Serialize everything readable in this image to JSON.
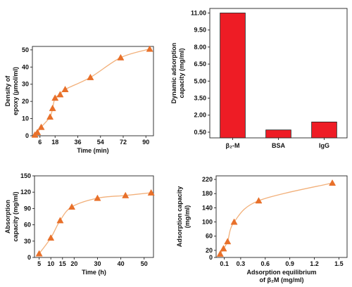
{
  "chart_data": [
    {
      "id": "epoxy",
      "type": "line",
      "xlabel": "Time (min)",
      "ylabel": [
        "Density of",
        "epoxy (µmol/ml)"
      ],
      "xlim": [
        0,
        96
      ],
      "ylim": [
        0,
        52
      ],
      "xticks": [
        6,
        18,
        36,
        54,
        72,
        90
      ],
      "yticks": [
        0,
        10,
        20,
        30,
        40,
        50
      ],
      "grid": false,
      "marker": "triangle",
      "line_color": "#f2b07a",
      "marker_color": "#e8702a",
      "series": [
        {
          "x": [
            2,
            4,
            7,
            14,
            16,
            18,
            22,
            26,
            46,
            70,
            93
          ],
          "y": [
            0.5,
            2,
            5,
            11,
            16,
            22,
            24,
            27,
            34,
            45.5,
            50.5
          ]
        }
      ]
    },
    {
      "id": "dynamic",
      "type": "bar",
      "ylabel": [
        "Dynamic adsorption",
        "capacity (mg/ml)"
      ],
      "categories": [
        "β₂-M",
        "BSA",
        "IgG"
      ],
      "values": [
        11.0,
        0.7,
        1.4
      ],
      "ylim": [
        0,
        11.4
      ],
      "yticks": [
        "0.50",
        "2.00",
        "3.50",
        "5.00",
        "6.50",
        "8.00",
        "9.50",
        "11.00"
      ],
      "ytick_values": [
        0.5,
        2.0,
        3.5,
        5.0,
        6.5,
        8.0,
        9.5,
        11.0
      ],
      "bar_color": "#ee1c25"
    },
    {
      "id": "capacity_time",
      "type": "line",
      "xlabel": "Time (h)",
      "ylabel": [
        "Absorption",
        "capacity (mg/ml)"
      ],
      "xlim": [
        3,
        54
      ],
      "ylim": [
        0,
        150
      ],
      "xticks": [
        5,
        10,
        15,
        20,
        30,
        40,
        50
      ],
      "yticks": [
        0,
        30,
        60,
        90,
        120,
        150
      ],
      "grid": false,
      "marker": "triangle",
      "line_color": "#f2b07a",
      "marker_color": "#e8702a",
      "series": [
        {
          "x": [
            5,
            10,
            14,
            19,
            30,
            42,
            53
          ],
          "y": [
            7,
            36,
            68,
            93,
            109,
            114,
            119
          ]
        }
      ]
    },
    {
      "id": "isotherm",
      "type": "line",
      "xlabel": [
        "Adsorption equilibrium",
        "of β₂M (mg/ml)"
      ],
      "ylabel": [
        "Adsorption capacity",
        "(mg/ml)"
      ],
      "xlim": [
        0,
        1.6
      ],
      "ylim": [
        0,
        230
      ],
      "xticks": [
        "0.1",
        "0.3",
        "0.6",
        "0.9",
        "1.2",
        "1.5"
      ],
      "xtick_values": [
        0.1,
        0.3,
        0.6,
        0.9,
        1.2,
        1.5
      ],
      "yticks": [
        0,
        20,
        60,
        100,
        140,
        180,
        220
      ],
      "grid": false,
      "marker": "triangle",
      "line_color": "#f2b07a",
      "marker_color": "#e8702a",
      "series": [
        {
          "x": [
            0.05,
            0.09,
            0.14,
            0.22,
            0.52,
            1.42
          ],
          "y": [
            10,
            25,
            45,
            100,
            160,
            210
          ]
        }
      ]
    }
  ]
}
